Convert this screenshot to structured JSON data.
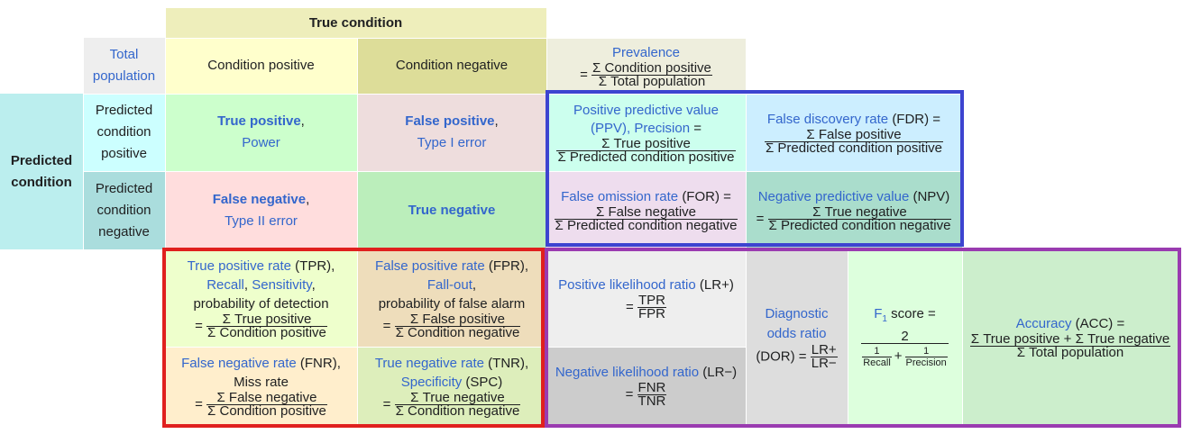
{
  "true_condition": "True condition",
  "predicted_condition": [
    "Predicted",
    "condition"
  ],
  "total_population": [
    "Total",
    "population"
  ],
  "condition_positive": "Condition positive",
  "condition_negative": "Condition negative",
  "predicted_condition_positive": [
    "Predicted",
    "condition",
    "positive"
  ],
  "predicted_condition_negative": [
    "Predicted",
    "condition",
    "negative"
  ],
  "prevalence": {
    "label": "Prevalence",
    "eq": "=",
    "num": "Σ Condition positive",
    "den": "Σ Total population"
  },
  "tp": {
    "bold": "True positive",
    "comma": ",",
    "sub": "Power"
  },
  "fp": {
    "bold": "False positive",
    "comma": ",",
    "sub": "Type I error"
  },
  "fn": {
    "bold": "False negative",
    "comma": ",",
    "sub": "Type II error"
  },
  "tn": {
    "bold": "True negative"
  },
  "ppv": {
    "l1": "Positive predictive value",
    "l2a": "(PPV),",
    "l2b": "Precision",
    "l2c": "=",
    "num": "Σ True positive",
    "den": "Σ Predicted condition positive"
  },
  "fdr": {
    "l1a": "False discovery rate",
    "l1b": "(FDR) =",
    "num": "Σ False positive",
    "den": "Σ Predicted condition positive"
  },
  "for": {
    "l1a": "False omission rate",
    "l1b": "(FOR) =",
    "num": "Σ False negative",
    "den": "Σ Predicted condition negative"
  },
  "npv": {
    "l1a": "Negative predictive value",
    "l1b": "(NPV)",
    "eq": "=",
    "num": "Σ True negative",
    "den": "Σ Predicted condition negative"
  },
  "tpr": {
    "l1a": "True positive rate",
    "l1b": "(TPR),",
    "recall": "Recall",
    "sep": ",",
    "sens": "Sensitivity",
    "sep2": ",",
    "l3": "probability of detection",
    "eq": "=",
    "num": "Σ True positive",
    "den": "Σ Condition positive"
  },
  "fpr": {
    "l1a": "False positive rate",
    "l1b": "(FPR),",
    "fallout": "Fall-out",
    "sep": ",",
    "l3": "probability of false alarm",
    "eq": "=",
    "num": "Σ False positive",
    "den": "Σ Condition negative"
  },
  "fnr": {
    "l1a": "False negative rate",
    "l1b": "(FNR),",
    "l2": "Miss rate",
    "eq": "=",
    "num": "Σ False negative",
    "den": "Σ Condition positive"
  },
  "tnr": {
    "l1a": "True negative rate",
    "l1b": "(TNR),",
    "spec": "Specificity",
    "spec2": "(SPC)",
    "eq": "=",
    "num": "Σ True negative",
    "den": "Σ Condition negative"
  },
  "lrp": {
    "l1a": "Positive likelihood ratio",
    "l1b": "(LR+)",
    "eq": "=",
    "num": "TPR",
    "den": "FPR"
  },
  "lrn": {
    "l1a": "Negative likelihood ratio",
    "l1b": "(LR−)",
    "eq": "=",
    "num": "FNR",
    "den": "TNR"
  },
  "dor": {
    "l1": "Diagnostic",
    "l2": "odds ratio",
    "l3": "(DOR) =",
    "num": "LR+",
    "den": "LR−"
  },
  "f1": {
    "f": "F",
    "sub": "1",
    "rest": "score =",
    "num": "2",
    "r": "1",
    "recall": "Recall",
    "plus": "+",
    "p": "1",
    "precision": "Precision"
  },
  "acc": {
    "l1a": "Accuracy",
    "l1b": "(ACC) =",
    "num": "Σ True positive + Σ True negative",
    "den": "Σ Total population"
  },
  "colors": {
    "true_condition_header": "#eeeebb",
    "predicted_condition_header": "#bbeeee",
    "total_population": "#eeeeee",
    "condition_positive": "#ffffcc",
    "condition_negative": "#dddd99",
    "predicted_positive": "#ccffff",
    "predicted_negative": "#aadddd",
    "true_positive": "#ccffcc",
    "false_positive": "#eedddd",
    "false_negative": "#ffdddd",
    "true_negative": "#bbeebb",
    "prevalence": "#eeeedd",
    "ppv": "#ccffee",
    "fdr": "#cceeff",
    "for": "#eeddee",
    "npv": "#aaddcc",
    "tpr": "#eeffcc",
    "fpr": "#eeddbb",
    "fnr": "#ffeecc",
    "tnr": "#ddeebb",
    "lr_pos": "#eeeeee",
    "lr_neg": "#cccccc",
    "dor": "#dddddd",
    "f1": "#ddffdd",
    "acc": "#cceecc",
    "box_blue": "#3d44d0",
    "box_red": "#e0201e",
    "box_purple": "#9a3bb0",
    "link": "#3366cc"
  }
}
